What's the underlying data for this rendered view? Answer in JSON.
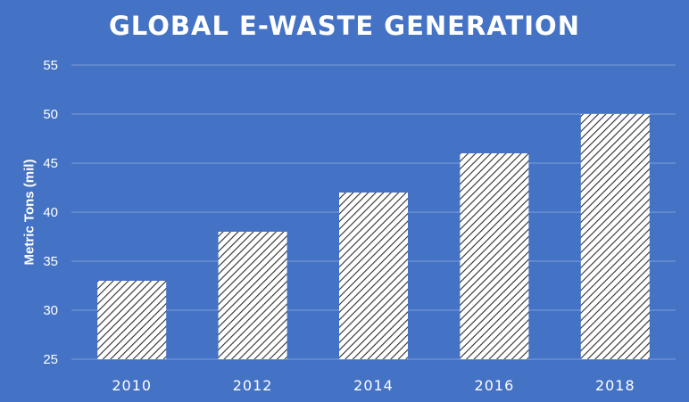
{
  "chart_data": {
    "type": "bar",
    "title": "GLOBAL E-WASTE GENERATION",
    "xlabel": "",
    "ylabel": "Metric Tons (mil)",
    "categories": [
      "2010",
      "2012",
      "2014",
      "2016",
      "2018"
    ],
    "values": [
      33,
      38,
      42,
      46,
      50
    ],
    "ylim": [
      25,
      55
    ],
    "yticks": [
      25,
      30,
      35,
      40,
      45,
      50,
      55
    ],
    "grid": true,
    "legend": "none",
    "bar_fill": "diagonal-hatch",
    "colors": {
      "background": "#4472C4",
      "bar_fill": "#FFFFFF",
      "bar_hatch": "#2E2E2E",
      "text": "#FFFFFF",
      "gridline": "#7F9FD8"
    }
  }
}
